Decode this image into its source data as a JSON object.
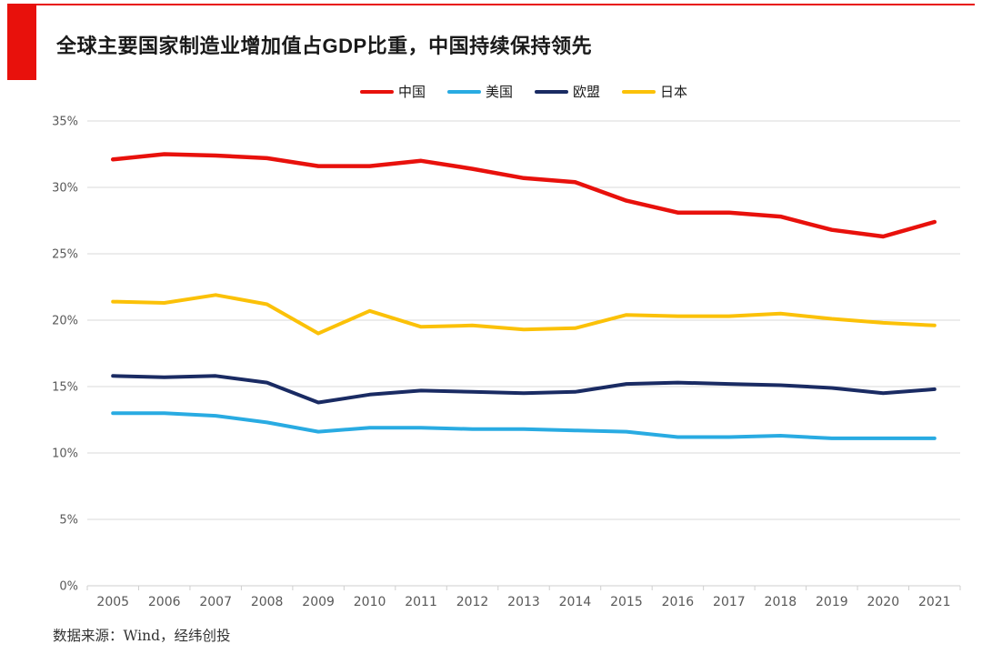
{
  "header": {
    "title": "全球主要国家制造业增加值占GDP比重，中国持续保持领先"
  },
  "source": {
    "text": "数据来源：Wind，经纬创投"
  },
  "palette": {
    "accent_red": "#e8110c",
    "grid_line": "#d9d9d9",
    "axis_line": "#cfcfcf",
    "axis_label": "#595959",
    "title_text": "#1a1a1a",
    "source_text": "#333333"
  },
  "chart_data": {
    "type": "line",
    "title": "全球主要国家制造业增加值占GDP比重，中国持续保持领先",
    "x": [
      "2005",
      "2006",
      "2007",
      "2008",
      "2009",
      "2010",
      "2011",
      "2012",
      "2013",
      "2014",
      "2015",
      "2016",
      "2017",
      "2018",
      "2019",
      "2020",
      "2021"
    ],
    "series": [
      {
        "name": "中国",
        "key": "china",
        "color": "#e8110c",
        "stroke_width": 4.5,
        "values": [
          32.1,
          32.5,
          32.4,
          32.2,
          31.6,
          31.6,
          32.0,
          31.4,
          30.7,
          30.4,
          29.0,
          28.1,
          28.1,
          27.8,
          26.8,
          26.3,
          27.4
        ]
      },
      {
        "name": "美国",
        "key": "usa",
        "color": "#29abe2",
        "stroke_width": 4,
        "values": [
          13.0,
          13.0,
          12.8,
          12.3,
          11.6,
          11.9,
          11.9,
          11.8,
          11.8,
          11.7,
          11.6,
          11.2,
          11.2,
          11.3,
          11.1,
          11.1,
          11.1
        ]
      },
      {
        "name": "欧盟",
        "key": "eu",
        "color": "#1a2b63",
        "stroke_width": 4,
        "values": [
          15.8,
          15.7,
          15.8,
          15.3,
          13.8,
          14.4,
          14.7,
          14.6,
          14.5,
          14.6,
          15.2,
          15.3,
          15.2,
          15.1,
          14.9,
          14.5,
          14.8
        ]
      },
      {
        "name": "日本",
        "key": "japan",
        "color": "#fbc108",
        "stroke_width": 4,
        "values": [
          21.4,
          21.3,
          21.9,
          21.2,
          19.0,
          20.7,
          19.5,
          19.6,
          19.3,
          19.4,
          20.4,
          20.3,
          20.3,
          20.5,
          20.1,
          19.8,
          19.6
        ]
      }
    ],
    "xlabel": "",
    "ylabel": "",
    "ylim": [
      0,
      35
    ],
    "ytick_step": 5,
    "ytick_suffix": "%",
    "grid": true,
    "legend_position": "top-center"
  }
}
